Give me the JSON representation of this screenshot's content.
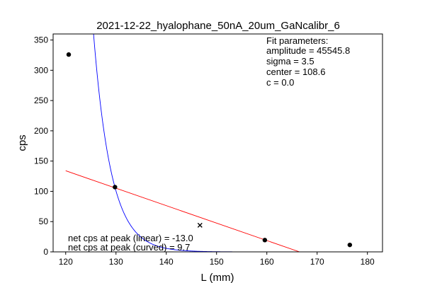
{
  "chart_data": {
    "type": "scatter",
    "title": "2021-12-22_hyalophane_50nA_20um_GaNcalibr_6",
    "xlabel": "L (mm)",
    "ylabel": "cps",
    "xlim": [
      117.5,
      183.0
    ],
    "ylim": [
      0,
      360
    ],
    "x_ticks": [
      "120",
      "130",
      "140",
      "150",
      "160",
      "170",
      "180"
    ],
    "y_ticks": [
      "0",
      "50",
      "100",
      "150",
      "200",
      "250",
      "300",
      "350"
    ],
    "grid": false,
    "points": [
      {
        "x": 120.6,
        "y": 326
      },
      {
        "x": 129.8,
        "y": 107
      },
      {
        "x": 159.6,
        "y": 19.5
      },
      {
        "x": 176.5,
        "y": 11.5
      }
    ],
    "peak_marker": {
      "x": 146.7,
      "y": 44
    },
    "fit_curve": {
      "color": "#0000ff",
      "x": [
        120,
        180
      ],
      "amplitude": 45545.8,
      "sigma": 3.5,
      "center": 108.6,
      "c": 0.0
    },
    "linear_fit": {
      "color": "#ff0000",
      "x": [
        120,
        166.5
      ],
      "y": [
        134,
        0
      ]
    },
    "fit_parameters": {
      "header": "Fit parameters:",
      "lines": [
        "amplitude = 45545.8",
        "sigma = 3.5",
        "center = 108.6",
        "c = 0.0"
      ]
    },
    "annotations": {
      "net_linear": "net cps at peak (linear) = -13.0",
      "net_curved": "net cps at peak (curved) = 9.7"
    }
  }
}
